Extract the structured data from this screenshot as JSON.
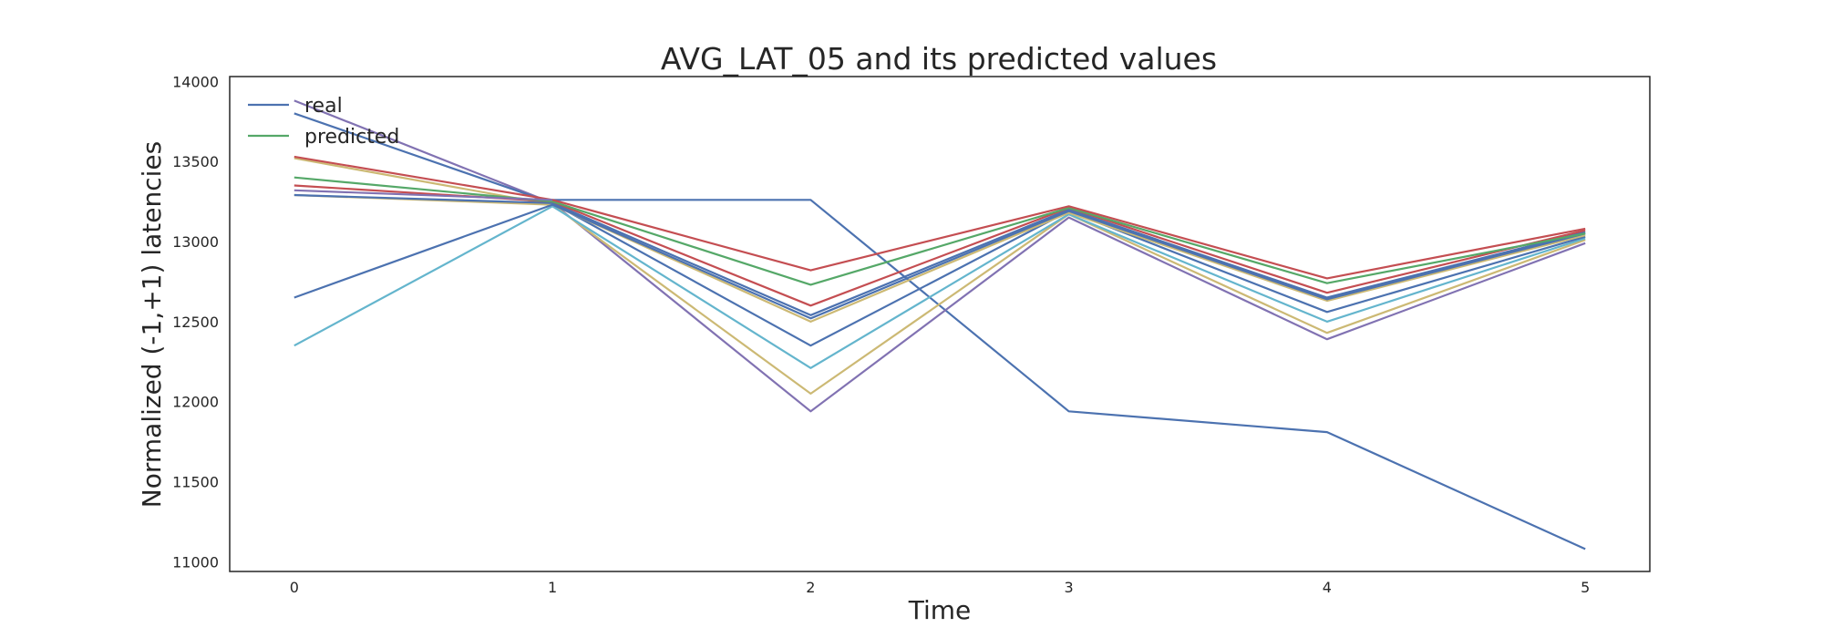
{
  "chart_data": {
    "type": "line",
    "title": "AVG_LAT_05 and its predicted values",
    "xlabel": "Time",
    "ylabel": "Normalized (-1,+1) latencies",
    "x": [
      0,
      1,
      2,
      3,
      4,
      5
    ],
    "x_ticks": [
      "0",
      "1",
      "2",
      "3",
      "4",
      "5"
    ],
    "y_ticks": [
      "11000",
      "11500",
      "12000",
      "12500",
      "13000",
      "13500",
      "14000"
    ],
    "xlim": [
      -0.25,
      5.25
    ],
    "ylim": [
      10940,
      14030
    ],
    "grid": false,
    "legend_position": "top-left",
    "legend": [
      {
        "label": "real",
        "color": "#4c72b0"
      },
      {
        "label": "predicted",
        "color": "#55a868"
      }
    ],
    "series": [
      {
        "color": "#4c72b0",
        "x": [
          1,
          2,
          3,
          4,
          5
        ],
        "values": [
          13260,
          13260,
          11940,
          11810,
          11080
        ]
      },
      {
        "color": "#8172b2",
        "x": [
          0,
          1,
          2,
          3,
          4,
          5
        ],
        "values": [
          13880,
          13240,
          11940,
          13150,
          12390,
          12990
        ]
      },
      {
        "color": "#ccb974",
        "x": [
          0,
          1,
          2,
          3,
          4,
          5
        ],
        "values": [
          13520,
          13230,
          12050,
          13170,
          12430,
          13010
        ]
      },
      {
        "color": "#64b5cd",
        "x": [
          0,
          1,
          2,
          3,
          4,
          5
        ],
        "values": [
          12350,
          13220,
          12210,
          13170,
          12500,
          13020
        ]
      },
      {
        "color": "#4c72b0",
        "x": [
          0,
          1,
          2,
          3,
          4,
          5
        ],
        "values": [
          13800,
          13240,
          12350,
          13190,
          12560,
          13030
        ]
      },
      {
        "color": "#ccb974",
        "x": [
          0,
          1,
          2,
          3,
          4,
          5
        ],
        "values": [
          13290,
          13230,
          12500,
          13180,
          12630,
          13040
        ]
      },
      {
        "color": "#4c72b0",
        "x": [
          0,
          1,
          2,
          3,
          4,
          5
        ],
        "values": [
          12650,
          13230,
          12520,
          13190,
          12640,
          13050
        ]
      },
      {
        "color": "#4c72b0",
        "x": [
          0,
          1,
          2,
          3,
          4,
          5
        ],
        "values": [
          13290,
          13240,
          12540,
          13200,
          12650,
          13060
        ]
      },
      {
        "color": "#c44e52",
        "x": [
          0,
          1,
          2,
          3,
          4,
          5
        ],
        "values": [
          13350,
          13250,
          12600,
          13210,
          12680,
          13070
        ]
      },
      {
        "color": "#55a868",
        "x": [
          0,
          1,
          2,
          3,
          4,
          5
        ],
        "values": [
          13400,
          13250,
          12730,
          13210,
          12740,
          13050
        ]
      },
      {
        "color": "#c44e52",
        "x": [
          0,
          1,
          2,
          3,
          4,
          5
        ],
        "values": [
          13530,
          13260,
          12820,
          13220,
          12770,
          13080
        ]
      },
      {
        "color": "#8172b2",
        "x": [
          0,
          1
        ],
        "values": [
          13320,
          13260
        ]
      }
    ]
  }
}
